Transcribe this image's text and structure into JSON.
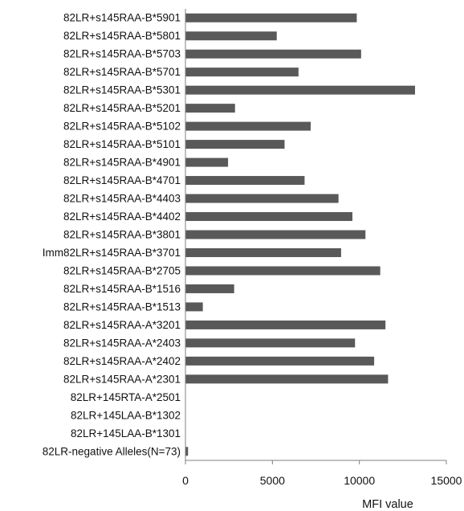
{
  "chart_data": {
    "type": "bar",
    "orientation": "horizontal",
    "title": "",
    "xlabel": "MFI value",
    "ylabel": "",
    "xlim": [
      0,
      15000
    ],
    "xticks": [
      "0",
      "5000",
      "10000",
      "15000"
    ],
    "xtick_values": [
      0,
      5000,
      10000,
      15000
    ],
    "grid": false,
    "legend": "none",
    "bar_color": "#595959",
    "categories": [
      "82LR+s145RAA-B*5901",
      "82LR+s145RAA-B*5801",
      "82LR+s145RAA-B*5703",
      "82LR+s145RAA-B*5701",
      "82LR+s145RAA-B*5301",
      "82LR+s145RAA-B*5201",
      "82LR+s145RAA-B*5102",
      "82LR+s145RAA-B*5101",
      "82LR+s145RAA-B*4901",
      "82LR+s145RAA-B*4701",
      "82LR+s145RAA-B*4403",
      "82LR+s145RAA-B*4402",
      "82LR+s145RAA-B*3801",
      "Imm82LR+s145RAA-B*3701",
      "82LR+s145RAA-B*2705",
      "82LR+s145RAA-B*1516",
      "82LR+s145RAA-B*1513",
      "82LR+s145RAA-A*3201",
      "82LR+s145RAA-A*2403",
      "82LR+s145RAA-A*2402",
      "82LR+s145RAA-A*2301",
      "82LR+145RTA-A*2501",
      "82LR+145LAA-B*1302",
      "82LR+145LAA-B*1301",
      "82LR-negative Alleles(N=73)"
    ],
    "values": [
      9850,
      5250,
      10100,
      6500,
      13200,
      2850,
      7200,
      5700,
      2450,
      6850,
      8800,
      9600,
      10350,
      8950,
      11200,
      2800,
      1000,
      11500,
      9750,
      10850,
      11650,
      0,
      0,
      0,
      150
    ]
  }
}
